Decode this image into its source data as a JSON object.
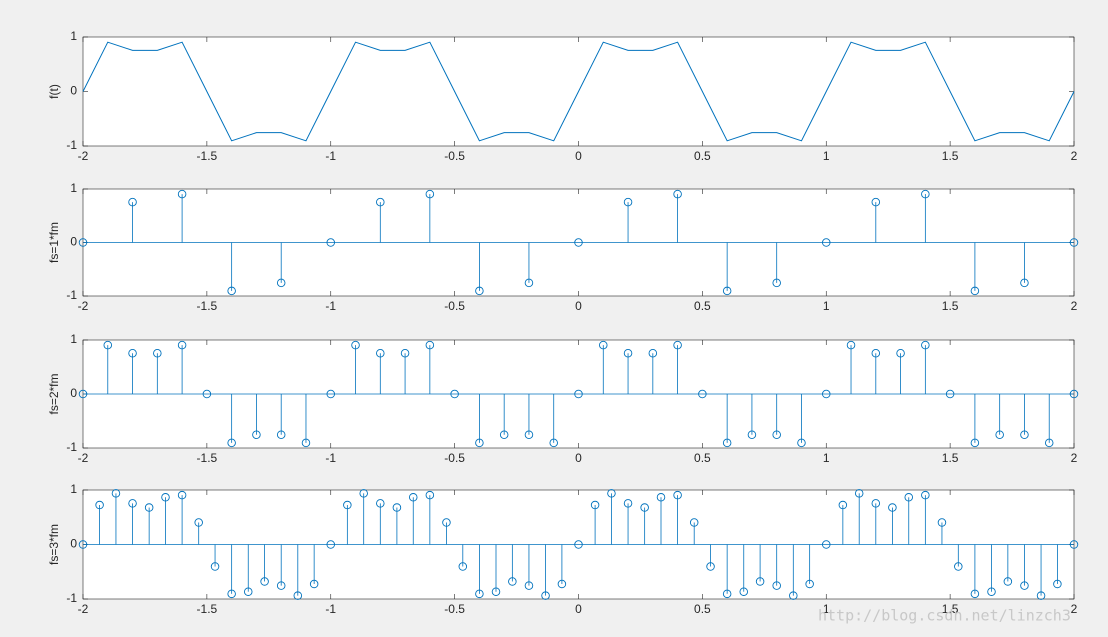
{
  "chart_data": [
    {
      "type": "line",
      "ylabel": "f(t)",
      "color": "#0072bd",
      "xlim": [
        -2,
        2
      ],
      "ylim": [
        -1,
        1
      ],
      "xticks": [
        -2,
        -1.5,
        -1,
        -0.5,
        0,
        0.5,
        1,
        1.5,
        2
      ],
      "yticks": [
        -1,
        0,
        1
      ],
      "x": [
        -2,
        -1.9,
        -1.8,
        -1.7,
        -1.6,
        -1.5,
        -1.4,
        -1.3,
        -1.2,
        -1.1,
        -1,
        -0.9,
        -0.8,
        -0.7,
        -0.6,
        -0.5,
        -0.4,
        -0.3,
        -0.2,
        -0.1,
        0,
        0.1,
        0.2,
        0.3,
        0.4,
        0.5,
        0.6,
        0.7,
        0.8,
        0.9,
        1,
        1.1,
        1.2,
        1.3,
        1.4,
        1.5,
        1.6,
        1.7,
        1.8,
        1.9,
        2
      ],
      "values": [
        0,
        0.905,
        0.755,
        0.755,
        0.905,
        0,
        -0.905,
        -0.755,
        -0.755,
        -0.905,
        0,
        0.905,
        0.755,
        0.755,
        0.905,
        0,
        -0.905,
        -0.755,
        -0.755,
        -0.905,
        0,
        0.905,
        0.755,
        0.755,
        0.905,
        0,
        -0.905,
        -0.755,
        -0.755,
        -0.905,
        0,
        0.905,
        0.755,
        0.755,
        0.905,
        0,
        -0.905,
        -0.755,
        -0.755,
        -0.905,
        0
      ]
    },
    {
      "type": "stem",
      "ylabel": "fs=1*fm",
      "color": "#0072bd",
      "xlim": [
        -2,
        2
      ],
      "ylim": [
        -1,
        1
      ],
      "xticks": [
        -2,
        -1.5,
        -1,
        -0.5,
        0,
        0.5,
        1,
        1.5,
        2
      ],
      "yticks": [
        -1,
        0,
        1
      ],
      "x": [
        -2,
        -1.8,
        -1.6,
        -1.4,
        -1.2,
        -1,
        -0.8,
        -0.6,
        -0.4,
        -0.2,
        0,
        0.2,
        0.4,
        0.6,
        0.8,
        1,
        1.2,
        1.4,
        1.6,
        1.8,
        2
      ],
      "values": [
        0,
        0.755,
        0.905,
        -0.905,
        -0.755,
        0,
        0.755,
        0.905,
        -0.905,
        -0.755,
        0,
        0.755,
        0.905,
        -0.905,
        -0.755,
        0,
        0.755,
        0.905,
        -0.905,
        -0.755,
        0
      ]
    },
    {
      "type": "stem",
      "ylabel": "fs=2*fm",
      "color": "#0072bd",
      "xlim": [
        -2,
        2
      ],
      "ylim": [
        -1,
        1
      ],
      "xticks": [
        -2,
        -1.5,
        -1,
        -0.5,
        0,
        0.5,
        1,
        1.5,
        2
      ],
      "yticks": [
        -1,
        0,
        1
      ],
      "x": [
        -2,
        -1.9,
        -1.8,
        -1.7,
        -1.6,
        -1.5,
        -1.4,
        -1.3,
        -1.2,
        -1.1,
        -1,
        -0.9,
        -0.8,
        -0.7,
        -0.6,
        -0.5,
        -0.4,
        -0.3,
        -0.2,
        -0.1,
        0,
        0.1,
        0.2,
        0.3,
        0.4,
        0.5,
        0.6,
        0.7,
        0.8,
        0.9,
        1,
        1.1,
        1.2,
        1.3,
        1.4,
        1.5,
        1.6,
        1.7,
        1.8,
        1.9,
        2
      ],
      "values": [
        0,
        0.905,
        0.755,
        0.755,
        0.905,
        0,
        -0.905,
        -0.755,
        -0.755,
        -0.905,
        0,
        0.905,
        0.755,
        0.755,
        0.905,
        0,
        -0.905,
        -0.755,
        -0.755,
        -0.905,
        0,
        0.905,
        0.755,
        0.755,
        0.905,
        0,
        -0.905,
        -0.755,
        -0.755,
        -0.905,
        0,
        0.905,
        0.755,
        0.755,
        0.905,
        0,
        -0.905,
        -0.755,
        -0.755,
        -0.905,
        0
      ]
    },
    {
      "type": "stem",
      "ylabel": "fs=3*fm",
      "color": "#0072bd",
      "xlim": [
        -2,
        2
      ],
      "ylim": [
        -1,
        1
      ],
      "xticks": [
        -2,
        -1.5,
        -1,
        -0.5,
        0,
        0.5,
        1,
        1.5,
        2
      ],
      "yticks": [
        -1,
        0,
        1
      ],
      "x": [
        -2,
        -1.933,
        -1.867,
        -1.8,
        -1.733,
        -1.667,
        -1.6,
        -1.533,
        -1.467,
        -1.4,
        -1.333,
        -1.267,
        -1.2,
        -1.133,
        -1.067,
        -1,
        -0.933,
        -0.867,
        -0.8,
        -0.733,
        -0.667,
        -0.6,
        -0.533,
        -0.467,
        -0.4,
        -0.333,
        -0.267,
        -0.2,
        -0.133,
        -0.067,
        0,
        0.067,
        0.133,
        0.2,
        0.267,
        0.333,
        0.4,
        0.467,
        0.533,
        0.6,
        0.667,
        0.733,
        0.8,
        0.867,
        0.933,
        1,
        1.067,
        1.133,
        1.2,
        1.267,
        1.333,
        1.4,
        1.467,
        1.533,
        1.6,
        1.667,
        1.733,
        1.8,
        1.867,
        1.933,
        2
      ],
      "values": [
        0,
        0.724,
        0.939,
        0.755,
        0.678,
        0.866,
        0.905,
        0.404,
        -0.404,
        -0.905,
        -0.866,
        -0.678,
        -0.755,
        -0.939,
        -0.724,
        0,
        0.724,
        0.939,
        0.755,
        0.678,
        0.866,
        0.905,
        0.404,
        -0.404,
        -0.905,
        -0.866,
        -0.678,
        -0.755,
        -0.939,
        -0.724,
        0,
        0.724,
        0.939,
        0.755,
        0.678,
        0.866,
        0.905,
        0.404,
        -0.404,
        -0.905,
        -0.866,
        -0.678,
        -0.755,
        -0.939,
        -0.724,
        0,
        0.724,
        0.939,
        0.755,
        0.678,
        0.866,
        0.905,
        0.404,
        -0.404,
        -0.905,
        -0.866,
        -0.678,
        -0.755,
        -0.939,
        -0.724,
        0
      ]
    }
  ],
  "watermark": "http://blog.csdn.net/linzch3"
}
